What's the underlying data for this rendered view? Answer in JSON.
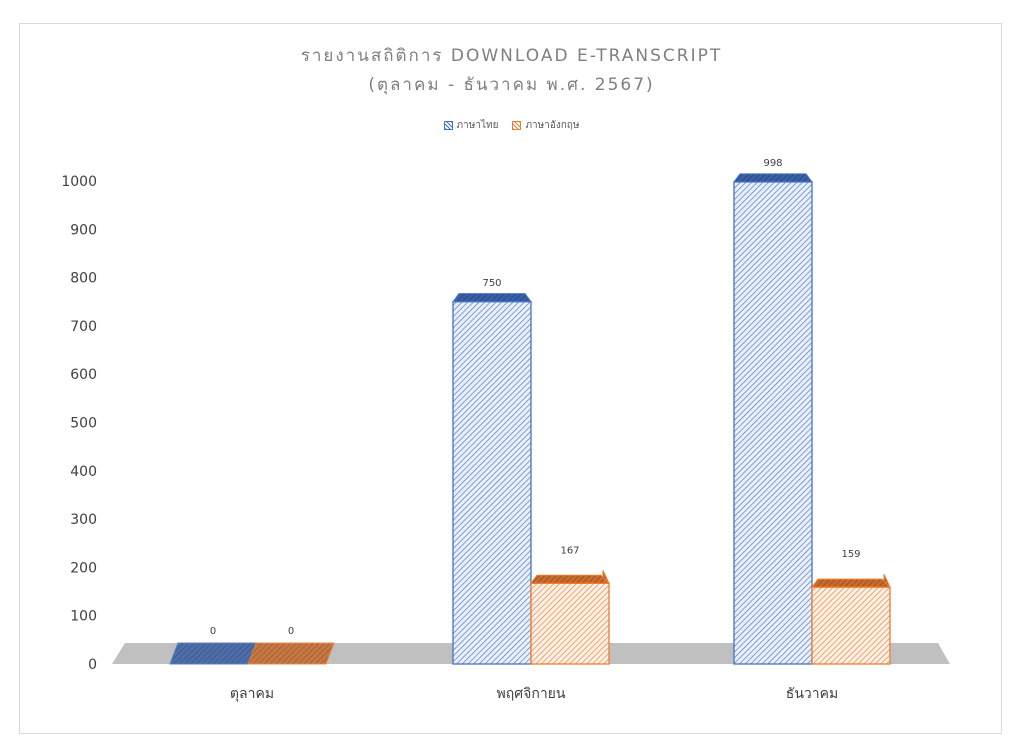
{
  "chart_data": {
    "type": "bar",
    "title": "รายงานสถิติการ DOWNLOAD E-TRANSCRIPT",
    "subtitle": "(ตุลาคม - ธันวาคม พ.ศ. 2567)",
    "categories": [
      "ตุลาคม",
      "พฤศจิกายน",
      "ธันวาคม"
    ],
    "series": [
      {
        "name": "ภาษาไทย",
        "values": [
          0,
          750,
          998
        ],
        "color": "#4472c4"
      },
      {
        "name": "ภาษาอังกฤษ",
        "values": [
          0,
          167,
          159
        ],
        "color": "#ed7d31"
      }
    ],
    "y_ticks": [
      "0",
      "100",
      "200",
      "300",
      "400",
      "500",
      "600",
      "700",
      "800",
      "900",
      "1000"
    ],
    "ylim": [
      0,
      1000
    ],
    "style": "3d-column-hatched",
    "legend_position": "top",
    "grid": false,
    "xlabel": "",
    "ylabel": ""
  }
}
